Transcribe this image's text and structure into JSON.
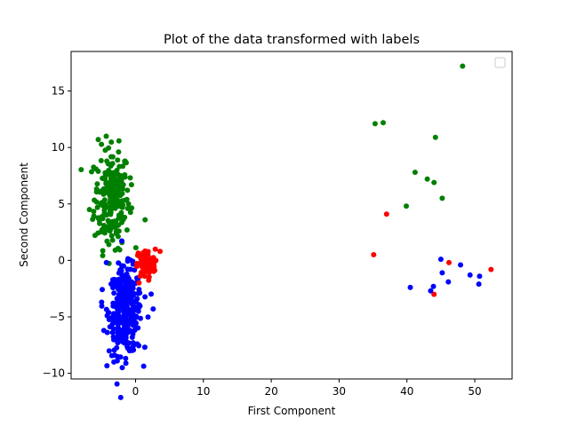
{
  "chart_data": {
    "type": "scatter",
    "title": "Plot of the data transformed with labels",
    "xlabel": "First Component",
    "ylabel": "Second Component",
    "xlim": [
      -9.5,
      55.5
    ],
    "ylim": [
      -10.5,
      18.5
    ],
    "xticks": [
      0,
      10,
      20,
      30,
      40,
      50
    ],
    "yticks": [
      -10,
      -5,
      0,
      5,
      10,
      15
    ],
    "grid": false,
    "legend": {
      "placement": "top-right",
      "entries": []
    },
    "colors": {
      "green": "#008000",
      "red": "#ff0000",
      "blue": "#0000ff"
    },
    "clusters": [
      {
        "color": "#008000",
        "center": [
          -3.5,
          5.5
        ],
        "spread": [
          1.3,
          2.2
        ],
        "count": 220
      },
      {
        "color": "#0000ff",
        "center": [
          -1.5,
          -4.5
        ],
        "spread": [
          1.2,
          1.9
        ],
        "count": 320
      },
      {
        "color": "#ff0000",
        "center": [
          1.5,
          -0.3
        ],
        "spread": [
          0.7,
          0.65
        ],
        "count": 90
      }
    ],
    "points": [
      {
        "x": -5.5,
        "y": 10.7,
        "color": "#008000"
      },
      {
        "x": -4.2,
        "y": 1.7,
        "color": "#008000"
      },
      {
        "x": -3.0,
        "y": 0.9,
        "color": "#008000"
      },
      {
        "x": -6.8,
        "y": 4.5,
        "color": "#008000"
      },
      {
        "x": 1.4,
        "y": 3.6,
        "color": "#008000"
      },
      {
        "x": -0.6,
        "y": 6.7,
        "color": "#008000"
      },
      {
        "x": -2.5,
        "y": 9.6,
        "color": "#008000"
      },
      {
        "x": 48.2,
        "y": 17.2,
        "color": "#008000"
      },
      {
        "x": 35.3,
        "y": 12.1,
        "color": "#008000"
      },
      {
        "x": 36.5,
        "y": 12.2,
        "color": "#008000"
      },
      {
        "x": 44.2,
        "y": 10.9,
        "color": "#008000"
      },
      {
        "x": 41.2,
        "y": 7.8,
        "color": "#008000"
      },
      {
        "x": 43.0,
        "y": 7.2,
        "color": "#008000"
      },
      {
        "x": 44.0,
        "y": 6.9,
        "color": "#008000"
      },
      {
        "x": 45.2,
        "y": 5.5,
        "color": "#008000"
      },
      {
        "x": 39.9,
        "y": 4.8,
        "color": "#008000"
      },
      {
        "x": 37.0,
        "y": 4.1,
        "color": "#ff0000"
      },
      {
        "x": 35.1,
        "y": 0.5,
        "color": "#ff0000"
      },
      {
        "x": 46.2,
        "y": -0.2,
        "color": "#ff0000"
      },
      {
        "x": 52.4,
        "y": -0.8,
        "color": "#ff0000"
      },
      {
        "x": 44.0,
        "y": -3.0,
        "color": "#ff0000"
      },
      {
        "x": 3.6,
        "y": 0.8,
        "color": "#ff0000"
      },
      {
        "x": 0.5,
        "y": -2.0,
        "color": "#ff0000"
      },
      {
        "x": 45.0,
        "y": 0.1,
        "color": "#0000ff"
      },
      {
        "x": 47.9,
        "y": -0.4,
        "color": "#0000ff"
      },
      {
        "x": 45.2,
        "y": -1.1,
        "color": "#0000ff"
      },
      {
        "x": 49.3,
        "y": -1.3,
        "color": "#0000ff"
      },
      {
        "x": 50.7,
        "y": -1.4,
        "color": "#0000ff"
      },
      {
        "x": 46.1,
        "y": -1.9,
        "color": "#0000ff"
      },
      {
        "x": 50.6,
        "y": -2.1,
        "color": "#0000ff"
      },
      {
        "x": 40.5,
        "y": -2.4,
        "color": "#0000ff"
      },
      {
        "x": 43.9,
        "y": -2.3,
        "color": "#0000ff"
      },
      {
        "x": 43.5,
        "y": -2.7,
        "color": "#0000ff"
      },
      {
        "x": -5.0,
        "y": -3.7,
        "color": "#0000ff"
      },
      {
        "x": -4.3,
        "y": -0.2,
        "color": "#0000ff"
      },
      {
        "x": -3.2,
        "y": -9.0,
        "color": "#0000ff"
      },
      {
        "x": -2.7,
        "y": -8.9,
        "color": "#0000ff"
      },
      {
        "x": 2.6,
        "y": -4.3,
        "color": "#0000ff"
      },
      {
        "x": 0.2,
        "y": -7.4,
        "color": "#0000ff"
      }
    ]
  }
}
